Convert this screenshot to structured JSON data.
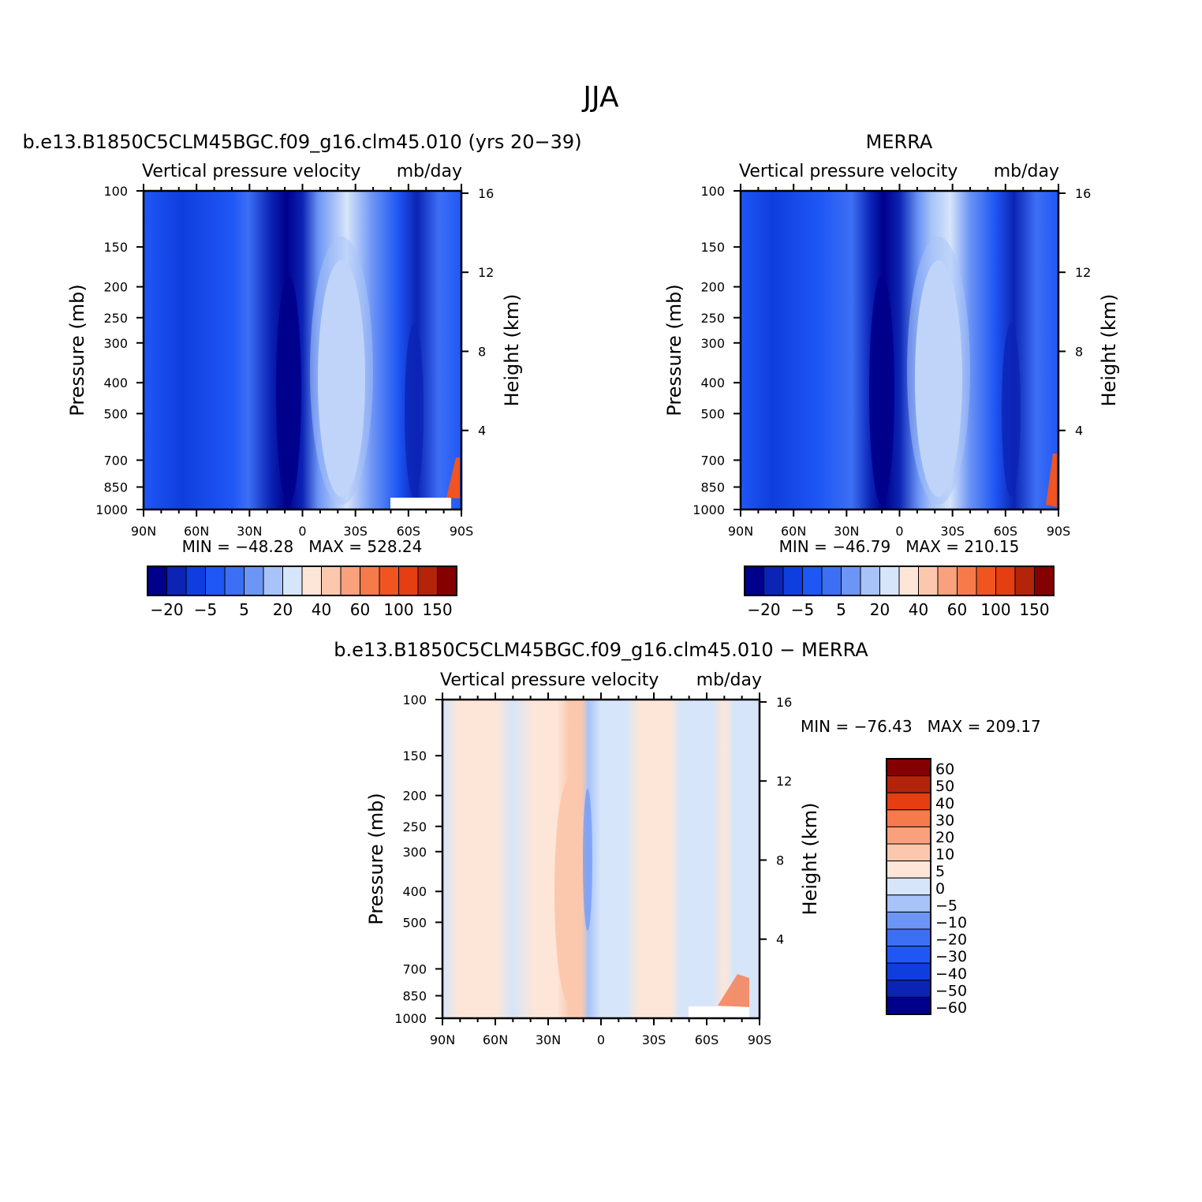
{
  "figure_title": "JJA",
  "chart_data": [
    {
      "type": "heatmap",
      "title": "b.e13.B1850C5CLM45BGC.f09_g16.clm45.010 (yrs 20-39)",
      "subtitle_left": "Vertical pressure velocity",
      "subtitle_right": "mb/day",
      "ylabel": "Pressure (mb)",
      "ylabel2": "Height (km)",
      "x_ticks": [
        "90N",
        "60N",
        "30N",
        "0",
        "30S",
        "60S",
        "90S"
      ],
      "x_values": [
        90,
        60,
        30,
        0,
        -30,
        -60,
        -90
      ],
      "y_ticks": [
        100,
        150,
        200,
        250,
        300,
        400,
        500,
        700,
        850,
        1000
      ],
      "y2_ticks": [
        16,
        12,
        8,
        4
      ],
      "min_max": "MIN = -48.28   MAX = 528.24",
      "stats": {
        "min": -48.28,
        "max": 528.24
      },
      "colorbar": {
        "orientation": "horizontal",
        "colors": [
          "#00008b",
          "#0b24b5",
          "#0f3ede",
          "#1f57f5",
          "#3d6ff5",
          "#6d95f5",
          "#a7c3f7",
          "#d6e5f9",
          "#fde6d8",
          "#fbc8ae",
          "#f9a07c",
          "#f77a4b",
          "#f05420",
          "#e43e12",
          "#b3240b",
          "#850000"
        ],
        "labels": [
          "-20",
          "-5",
          "5",
          "20",
          "40",
          "60",
          "100",
          "150"
        ]
      }
    },
    {
      "type": "heatmap",
      "title": "MERRA",
      "subtitle_left": "Vertical pressure velocity",
      "subtitle_right": "mb/day",
      "ylabel": "Pressure (mb)",
      "ylabel2": "Height (km)",
      "x_ticks": [
        "90N",
        "60N",
        "30N",
        "0",
        "30S",
        "60S",
        "90S"
      ],
      "x_values": [
        90,
        60,
        30,
        0,
        -30,
        -60,
        -90
      ],
      "y_ticks": [
        100,
        150,
        200,
        250,
        300,
        400,
        500,
        700,
        850,
        1000
      ],
      "y2_ticks": [
        16,
        12,
        8,
        4
      ],
      "min_max": "MIN = -46.79   MAX = 210.15",
      "stats": {
        "min": -46.79,
        "max": 210.15
      },
      "colorbar": {
        "orientation": "horizontal",
        "colors": [
          "#00008b",
          "#0b24b5",
          "#0f3ede",
          "#1f57f5",
          "#3d6ff5",
          "#6d95f5",
          "#a7c3f7",
          "#d6e5f9",
          "#fde6d8",
          "#fbc8ae",
          "#f9a07c",
          "#f77a4b",
          "#f05420",
          "#e43e12",
          "#b3240b",
          "#850000"
        ],
        "labels": [
          "-20",
          "-5",
          "5",
          "20",
          "40",
          "60",
          "100",
          "150"
        ]
      }
    },
    {
      "type": "heatmap",
      "title": "b.e13.B1850C5CLM45BGC.f09_g16.clm45.010 - MERRA",
      "subtitle_left": "Vertical pressure velocity",
      "subtitle_right": "mb/day",
      "ylabel": "Pressure (mb)",
      "ylabel2": "Height (km)",
      "x_ticks": [
        "90N",
        "60N",
        "30N",
        "0",
        "30S",
        "60S",
        "90S"
      ],
      "x_values": [
        90,
        60,
        30,
        0,
        -30,
        -60,
        -90
      ],
      "y_ticks": [
        100,
        150,
        200,
        250,
        300,
        400,
        500,
        700,
        850,
        1000
      ],
      "y2_ticks": [
        16,
        12,
        8,
        4
      ],
      "min_max": "MIN = -76.43   MAX = 209.17",
      "stats": {
        "min": -76.43,
        "max": 209.17
      },
      "colorbar": {
        "orientation": "vertical",
        "colors_top_to_bottom": [
          "#850000",
          "#b3240b",
          "#e43e12",
          "#f77a4b",
          "#f9a07c",
          "#fbc8ae",
          "#fde6d8",
          "#d6e5f9",
          "#a7c3f7",
          "#6d95f5",
          "#3d6ff5",
          "#1f57f5",
          "#0f3ede",
          "#0b24b5",
          "#00008b"
        ],
        "labels": [
          "60",
          "50",
          "40",
          "30",
          "20",
          "10",
          "5",
          "0",
          "-5",
          "-10",
          "-20",
          "-30",
          "-40",
          "-50",
          "-60"
        ]
      }
    }
  ]
}
